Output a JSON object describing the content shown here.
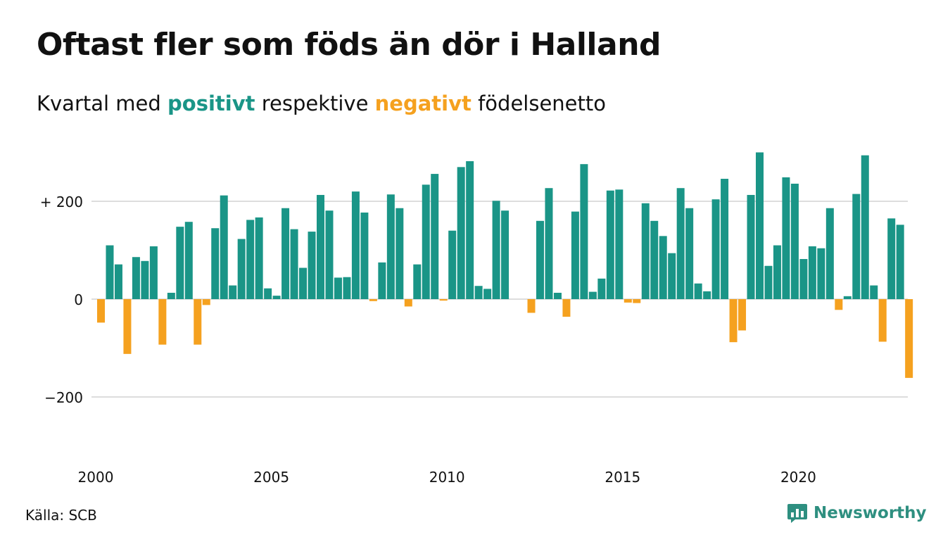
{
  "title": "Oftast fler som föds än dör i Halland",
  "subtitle": {
    "prefix": "Kvartal med ",
    "positive_word": "positivt",
    "middle": " respektive ",
    "negative_word": "negativt",
    "suffix": " födelsenetto"
  },
  "source": "Källa: SCB",
  "brand": {
    "name": "Newsworthy",
    "icon": "bar-chart-speech-icon"
  },
  "colors": {
    "positive": "#1a9587",
    "negative": "#f5a11f",
    "grid": "#dddddd",
    "brand": "#2e8f80"
  },
  "chart_data": {
    "type": "bar",
    "x_start": "2000 Q1",
    "frequency": "quarterly",
    "values": [
      -48,
      110,
      71,
      -112,
      86,
      78,
      108,
      -93,
      13,
      148,
      158,
      -93,
      -12,
      145,
      212,
      28,
      123,
      162,
      167,
      22,
      7,
      186,
      143,
      64,
      138,
      213,
      181,
      44,
      45,
      220,
      177,
      -4,
      75,
      214,
      186,
      -15,
      71,
      234,
      256,
      -3,
      140,
      270,
      282,
      27,
      21,
      201,
      181,
      0,
      0,
      -28,
      160,
      227,
      13,
      -36,
      179,
      276,
      15,
      42,
      222,
      224,
      -7,
      -8,
      196,
      160,
      129,
      94,
      227,
      186,
      32,
      16,
      204,
      246,
      -88,
      -64,
      213,
      300,
      68,
      110,
      249,
      236,
      82,
      108,
      104,
      186,
      -22,
      6,
      215,
      294,
      28,
      -87,
      165,
      152,
      -161
    ],
    "x_ticks": [
      "2000",
      "2005",
      "2010",
      "2015",
      "2020"
    ],
    "y_ticks": [
      {
        "value": 200,
        "label": "+ 200"
      },
      {
        "value": 0,
        "label": "0"
      },
      {
        "value": -200,
        "label": "−200"
      }
    ],
    "ylim": [
      -300,
      300
    ],
    "grid": true,
    "legend": "in subtitle"
  }
}
